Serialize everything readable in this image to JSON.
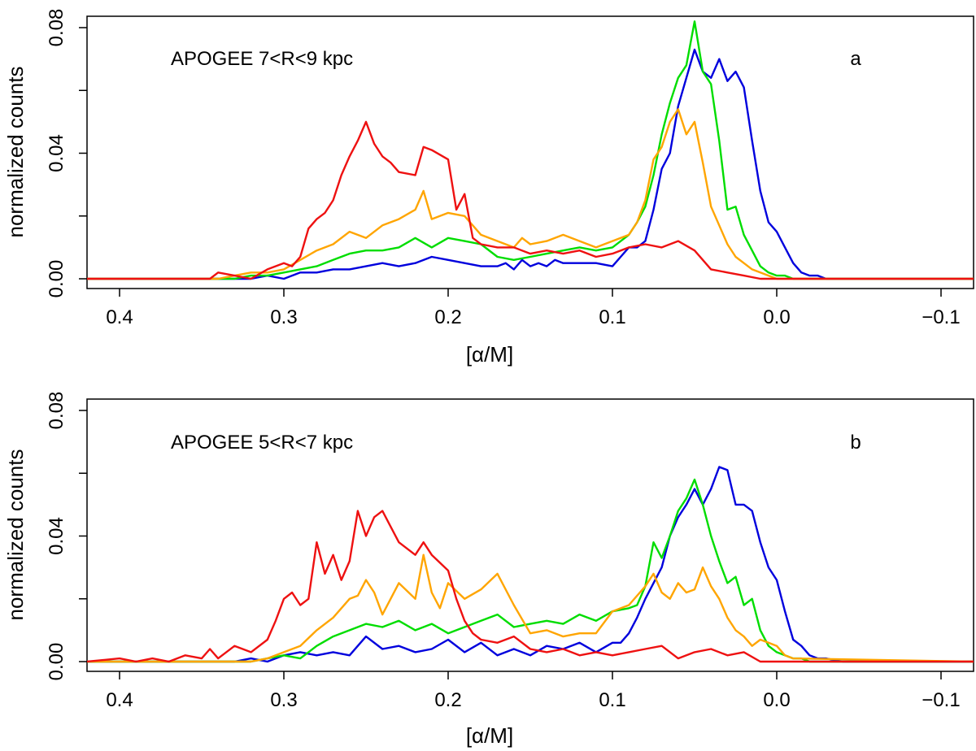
{
  "chart_data": [
    {
      "type": "line",
      "panel_label": "a",
      "annotation": "APOGEE 7<R<9 kpc",
      "xlabel": "[α/M]",
      "ylabel": "normalized counts",
      "xlim": [
        0.42,
        -0.12
      ],
      "ylim": [
        0,
        0.08
      ],
      "x_reversed": true,
      "x_ticks": [
        0.4,
        0.3,
        0.2,
        0.1,
        0.0,
        -0.1
      ],
      "x_tick_labels": [
        "0.4",
        "0.3",
        "0.2",
        "0.1",
        "0.0",
        "−0.1"
      ],
      "y_ticks": [
        0,
        0.04,
        0.08
      ],
      "y_tick_labels": [
        "0.00",
        "0.04",
        "0.08"
      ],
      "y_minor_ticks": [
        0.02,
        0.06
      ],
      "grid": false,
      "series": [
        {
          "color": "#0000dd",
          "x": [
            0.42,
            0.32,
            0.31,
            0.3,
            0.29,
            0.28,
            0.27,
            0.26,
            0.25,
            0.24,
            0.23,
            0.22,
            0.21,
            0.2,
            0.19,
            0.18,
            0.17,
            0.165,
            0.16,
            0.155,
            0.15,
            0.145,
            0.14,
            0.135,
            0.13,
            0.12,
            0.11,
            0.1,
            0.095,
            0.09,
            0.085,
            0.08,
            0.075,
            0.07,
            0.065,
            0.06,
            0.055,
            0.05,
            0.045,
            0.04,
            0.035,
            0.03,
            0.025,
            0.02,
            0.015,
            0.01,
            0.005,
            0.0,
            -0.005,
            -0.01,
            -0.015,
            -0.02,
            -0.025,
            -0.03,
            -0.12
          ],
          "y": [
            0,
            0,
            0.001,
            0,
            0.002,
            0.002,
            0.003,
            0.003,
            0.004,
            0.005,
            0.004,
            0.005,
            0.007,
            0.006,
            0.005,
            0.004,
            0.004,
            0.005,
            0.003,
            0.006,
            0.004,
            0.005,
            0.004,
            0.006,
            0.005,
            0.005,
            0.005,
            0.004,
            0.007,
            0.01,
            0.01,
            0.012,
            0.022,
            0.035,
            0.04,
            0.055,
            0.064,
            0.073,
            0.066,
            0.064,
            0.07,
            0.063,
            0.066,
            0.061,
            0.044,
            0.028,
            0.018,
            0.015,
            0.01,
            0.005,
            0.002,
            0.001,
            0.001,
            0,
            0
          ]
        },
        {
          "color": "#00dd00",
          "x": [
            0.42,
            0.33,
            0.32,
            0.31,
            0.3,
            0.29,
            0.28,
            0.27,
            0.26,
            0.25,
            0.24,
            0.23,
            0.22,
            0.21,
            0.2,
            0.19,
            0.18,
            0.17,
            0.16,
            0.15,
            0.14,
            0.13,
            0.12,
            0.11,
            0.1,
            0.09,
            0.085,
            0.08,
            0.075,
            0.07,
            0.065,
            0.06,
            0.055,
            0.05,
            0.045,
            0.04,
            0.035,
            0.03,
            0.025,
            0.02,
            0.015,
            0.01,
            0.005,
            0.0,
            -0.005,
            -0.01,
            -0.12
          ],
          "y": [
            0,
            0,
            0.001,
            0.001,
            0.002,
            0.003,
            0.004,
            0.006,
            0.008,
            0.009,
            0.009,
            0.01,
            0.013,
            0.01,
            0.013,
            0.012,
            0.011,
            0.007,
            0.006,
            0.007,
            0.008,
            0.009,
            0.01,
            0.009,
            0.01,
            0.014,
            0.018,
            0.023,
            0.033,
            0.046,
            0.056,
            0.064,
            0.068,
            0.082,
            0.066,
            0.062,
            0.044,
            0.022,
            0.023,
            0.014,
            0.009,
            0.004,
            0.002,
            0.001,
            0.001,
            0,
            0
          ]
        },
        {
          "color": "#ffa500",
          "x": [
            0.42,
            0.34,
            0.33,
            0.32,
            0.31,
            0.3,
            0.29,
            0.28,
            0.27,
            0.26,
            0.25,
            0.24,
            0.23,
            0.22,
            0.215,
            0.21,
            0.2,
            0.19,
            0.18,
            0.17,
            0.16,
            0.155,
            0.15,
            0.14,
            0.13,
            0.12,
            0.11,
            0.1,
            0.09,
            0.085,
            0.08,
            0.075,
            0.07,
            0.065,
            0.06,
            0.055,
            0.05,
            0.045,
            0.04,
            0.035,
            0.03,
            0.025,
            0.02,
            0.015,
            0.01,
            0.005,
            0.0,
            -0.12
          ],
          "y": [
            0,
            0,
            0.001,
            0.002,
            0.002,
            0.003,
            0.006,
            0.009,
            0.011,
            0.015,
            0.013,
            0.017,
            0.019,
            0.022,
            0.028,
            0.019,
            0.021,
            0.02,
            0.014,
            0.012,
            0.01,
            0.013,
            0.011,
            0.012,
            0.014,
            0.012,
            0.01,
            0.012,
            0.014,
            0.018,
            0.025,
            0.038,
            0.042,
            0.05,
            0.054,
            0.046,
            0.05,
            0.037,
            0.023,
            0.017,
            0.011,
            0.007,
            0.005,
            0.003,
            0.002,
            0.001,
            0,
            0
          ]
        },
        {
          "color": "#ee1111",
          "x": [
            0.42,
            0.4,
            0.345,
            0.34,
            0.33,
            0.32,
            0.31,
            0.3,
            0.295,
            0.29,
            0.285,
            0.28,
            0.275,
            0.27,
            0.265,
            0.26,
            0.255,
            0.25,
            0.245,
            0.24,
            0.235,
            0.23,
            0.22,
            0.215,
            0.21,
            0.2,
            0.195,
            0.19,
            0.185,
            0.18,
            0.17,
            0.16,
            0.15,
            0.14,
            0.13,
            0.12,
            0.11,
            0.1,
            0.09,
            0.08,
            0.07,
            0.06,
            0.05,
            0.04,
            0.03,
            0.02,
            0.01,
            0.0,
            -0.12
          ],
          "y": [
            0,
            0,
            0,
            0.002,
            0.001,
            0,
            0.003,
            0.005,
            0.004,
            0.007,
            0.016,
            0.019,
            0.021,
            0.025,
            0.033,
            0.039,
            0.044,
            0.05,
            0.043,
            0.039,
            0.037,
            0.034,
            0.033,
            0.042,
            0.041,
            0.038,
            0.022,
            0.027,
            0.013,
            0.011,
            0.01,
            0.01,
            0.008,
            0.009,
            0.008,
            0.009,
            0.007,
            0.008,
            0.01,
            0.011,
            0.01,
            0.012,
            0.009,
            0.003,
            0.002,
            0.001,
            0,
            0,
            0
          ]
        }
      ]
    },
    {
      "type": "line",
      "panel_label": "b",
      "annotation": "APOGEE 5<R<7 kpc",
      "xlabel": "[α/M]",
      "ylabel": "normalized counts",
      "xlim": [
        0.42,
        -0.12
      ],
      "ylim": [
        0,
        0.08
      ],
      "x_reversed": true,
      "x_ticks": [
        0.4,
        0.3,
        0.2,
        0.1,
        0.0,
        -0.1
      ],
      "x_tick_labels": [
        "0.4",
        "0.3",
        "0.2",
        "0.1",
        "0.0",
        "−0.1"
      ],
      "y_ticks": [
        0,
        0.04,
        0.08
      ],
      "y_tick_labels": [
        "0.00",
        "0.04",
        "0.08"
      ],
      "y_minor_ticks": [
        0.02,
        0.06
      ],
      "grid": false,
      "series": [
        {
          "color": "#0000dd",
          "x": [
            0.42,
            0.33,
            0.32,
            0.31,
            0.3,
            0.29,
            0.28,
            0.27,
            0.26,
            0.25,
            0.24,
            0.23,
            0.22,
            0.21,
            0.2,
            0.19,
            0.18,
            0.17,
            0.16,
            0.15,
            0.14,
            0.13,
            0.12,
            0.11,
            0.1,
            0.095,
            0.09,
            0.085,
            0.08,
            0.075,
            0.07,
            0.065,
            0.06,
            0.055,
            0.05,
            0.045,
            0.04,
            0.035,
            0.03,
            0.025,
            0.02,
            0.015,
            0.01,
            0.005,
            0.0,
            -0.005,
            -0.01,
            -0.015,
            -0.02,
            -0.025,
            -0.03,
            -0.04,
            -0.05,
            -0.12
          ],
          "y": [
            0,
            0,
            0.001,
            0,
            0.002,
            0.003,
            0.002,
            0.003,
            0.002,
            0.008,
            0.004,
            0.005,
            0.003,
            0.004,
            0.007,
            0.003,
            0.006,
            0.002,
            0.004,
            0.002,
            0.005,
            0.004,
            0.006,
            0.003,
            0.006,
            0.006,
            0.009,
            0.014,
            0.02,
            0.025,
            0.03,
            0.04,
            0.046,
            0.05,
            0.055,
            0.05,
            0.055,
            0.062,
            0.061,
            0.05,
            0.05,
            0.048,
            0.038,
            0.03,
            0.026,
            0.016,
            0.007,
            0.005,
            0.002,
            0.001,
            0.001,
            0,
            0,
            0
          ]
        },
        {
          "color": "#00dd00",
          "x": [
            0.42,
            0.32,
            0.31,
            0.3,
            0.29,
            0.28,
            0.27,
            0.26,
            0.25,
            0.24,
            0.23,
            0.22,
            0.21,
            0.2,
            0.19,
            0.18,
            0.17,
            0.16,
            0.15,
            0.14,
            0.13,
            0.12,
            0.11,
            0.1,
            0.09,
            0.085,
            0.08,
            0.075,
            0.07,
            0.065,
            0.06,
            0.055,
            0.05,
            0.045,
            0.04,
            0.035,
            0.03,
            0.025,
            0.02,
            0.015,
            0.01,
            0.005,
            0.0,
            -0.005,
            -0.01,
            -0.015,
            -0.02,
            -0.12
          ],
          "y": [
            0,
            0,
            0.001,
            0.002,
            0.001,
            0.005,
            0.008,
            0.01,
            0.012,
            0.011,
            0.013,
            0.01,
            0.012,
            0.009,
            0.011,
            0.013,
            0.015,
            0.011,
            0.012,
            0.013,
            0.012,
            0.015,
            0.013,
            0.016,
            0.017,
            0.018,
            0.024,
            0.038,
            0.033,
            0.04,
            0.048,
            0.052,
            0.058,
            0.05,
            0.04,
            0.032,
            0.025,
            0.027,
            0.018,
            0.02,
            0.01,
            0.005,
            0.003,
            0.002,
            0.001,
            0.001,
            0,
            0
          ]
        },
        {
          "color": "#ffa500",
          "x": [
            0.42,
            0.32,
            0.31,
            0.3,
            0.29,
            0.28,
            0.27,
            0.26,
            0.255,
            0.25,
            0.245,
            0.24,
            0.235,
            0.23,
            0.22,
            0.215,
            0.21,
            0.205,
            0.2,
            0.19,
            0.18,
            0.17,
            0.16,
            0.15,
            0.14,
            0.13,
            0.12,
            0.11,
            0.1,
            0.09,
            0.08,
            0.075,
            0.07,
            0.065,
            0.06,
            0.055,
            0.05,
            0.045,
            0.04,
            0.035,
            0.03,
            0.025,
            0.02,
            0.015,
            0.01,
            0.005,
            0.0,
            -0.005,
            -0.01,
            -0.12
          ],
          "y": [
            0,
            0,
            0.001,
            0.003,
            0.005,
            0.01,
            0.014,
            0.02,
            0.021,
            0.026,
            0.022,
            0.015,
            0.02,
            0.025,
            0.02,
            0.034,
            0.022,
            0.017,
            0.025,
            0.02,
            0.023,
            0.028,
            0.018,
            0.009,
            0.01,
            0.008,
            0.009,
            0.009,
            0.016,
            0.018,
            0.024,
            0.028,
            0.022,
            0.02,
            0.025,
            0.022,
            0.023,
            0.03,
            0.024,
            0.02,
            0.014,
            0.01,
            0.008,
            0.005,
            0.007,
            0.006,
            0.005,
            0.002,
            0.001,
            0
          ]
        },
        {
          "color": "#ee1111",
          "x": [
            0.42,
            0.4,
            0.39,
            0.38,
            0.37,
            0.36,
            0.35,
            0.345,
            0.34,
            0.33,
            0.32,
            0.31,
            0.305,
            0.3,
            0.295,
            0.29,
            0.285,
            0.28,
            0.275,
            0.27,
            0.265,
            0.26,
            0.255,
            0.25,
            0.245,
            0.24,
            0.235,
            0.23,
            0.22,
            0.215,
            0.21,
            0.2,
            0.195,
            0.19,
            0.185,
            0.18,
            0.17,
            0.16,
            0.15,
            0.14,
            0.13,
            0.12,
            0.11,
            0.1,
            0.09,
            0.08,
            0.07,
            0.06,
            0.05,
            0.04,
            0.03,
            0.02,
            0.01,
            -0.12
          ],
          "y": [
            0,
            0.001,
            0,
            0.001,
            0,
            0.002,
            0.001,
            0.004,
            0.001,
            0.005,
            0.003,
            0.007,
            0.013,
            0.02,
            0.022,
            0.018,
            0.02,
            0.038,
            0.028,
            0.034,
            0.026,
            0.032,
            0.048,
            0.04,
            0.046,
            0.048,
            0.043,
            0.038,
            0.034,
            0.038,
            0.034,
            0.029,
            0.02,
            0.013,
            0.009,
            0.007,
            0.006,
            0.008,
            0.004,
            0.003,
            0.004,
            0.002,
            0.003,
            0.002,
            0.003,
            0.004,
            0.005,
            0.001,
            0.003,
            0.004,
            0.002,
            0.003,
            0,
            0
          ]
        }
      ]
    }
  ]
}
